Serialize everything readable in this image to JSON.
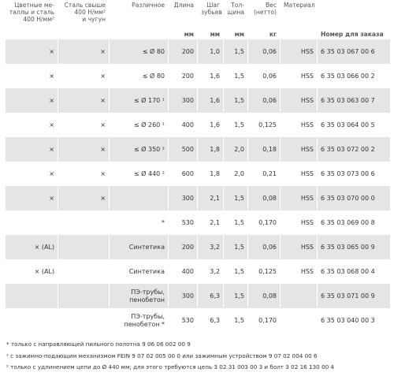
{
  "header": {
    "columns": [
      "Цветные ме-\nталлы и сталь\n400 Н/мм²",
      "Сталь свыше\n400 Н/мм²\nи чугун",
      "Различное",
      "Длина",
      "Шаг\nзубьев",
      "Тол-\nщина",
      "Вес\n(нетто)",
      "Материал",
      null
    ],
    "units": [
      null,
      null,
      null,
      "мм",
      "мм",
      "мм",
      "кг",
      null,
      "Номер для заказа"
    ]
  },
  "table": {
    "rows": [
      [
        "×",
        "×",
        "≤ Ø 80",
        "200",
        "1,0",
        "1,5",
        "0,06",
        "HSS",
        "6 35 03 067 00 6"
      ],
      [
        "×",
        "×",
        "≤ Ø 80",
        "200",
        "1,6",
        "1,5",
        "0,06",
        "HSS",
        "6 35 03 066 00 2"
      ],
      [
        "×",
        "×",
        "≤ Ø 170 ¹",
        "300",
        "1,6",
        "1,5",
        "0,06",
        "HSS",
        "6 35 03 063 00 7"
      ],
      [
        "×",
        "×",
        "≤ Ø 260 ¹",
        "400",
        "1,6",
        "1,5",
        "0,125",
        "HSS",
        "6 35 03 064 00 5"
      ],
      [
        "×",
        "×",
        "≤ Ø 350 ²",
        "500",
        "1,8",
        "2,0",
        "0,18",
        "HSS",
        "6 35 03 072 00 2"
      ],
      [
        "×",
        "×",
        "≤ Ø 440 ²",
        "600",
        "1,8",
        "2,0",
        "0,21",
        "HSS",
        "6 35 03 073 00 6"
      ],
      [
        "×",
        "×",
        null,
        "300",
        "2,1",
        "1,5",
        "0,08",
        "HSS",
        "6 35 03 070 00 0"
      ],
      [
        null,
        null,
        "*",
        "530",
        "2,1",
        "1,5",
        "0,170",
        "HSS",
        "6 35 03 069 00 8"
      ],
      [
        "× (AL)",
        null,
        "Синтетика",
        "200",
        "3,2",
        "1,5",
        "0,06",
        "HSS",
        "6 35 03 065 00 9"
      ],
      [
        "× (AL)",
        null,
        "Синтетика",
        "400",
        "3,2",
        "1,5",
        "0,125",
        "HSS",
        "6 35 03 068 00 4"
      ],
      [
        null,
        null,
        "ПЭ-трубы,\nпенобетон",
        "300",
        "6,3",
        "1,5",
        "0,08",
        null,
        "6 35 03 071 00 9"
      ],
      [
        null,
        null,
        "ПЭ-трубы,\nпенобетон *",
        "530",
        "6,3",
        "1,5",
        "0,170",
        null,
        "6 35 03 040 00 3"
      ]
    ]
  },
  "footnotes": [
    "* только с направляющей пильного полотна 9 06 06 002 00 9",
    "¹ с зажимно-подающим механизмом FEIN 9 07 02 005 00 0 или зажимным устройством 9 07 02 004 00 6",
    "² только с удлинением цепи до Ø 440 мм; для этого требуются цепь 3 02 31 003 00 3 и болт 3 02 16 130 00 4"
  ]
}
